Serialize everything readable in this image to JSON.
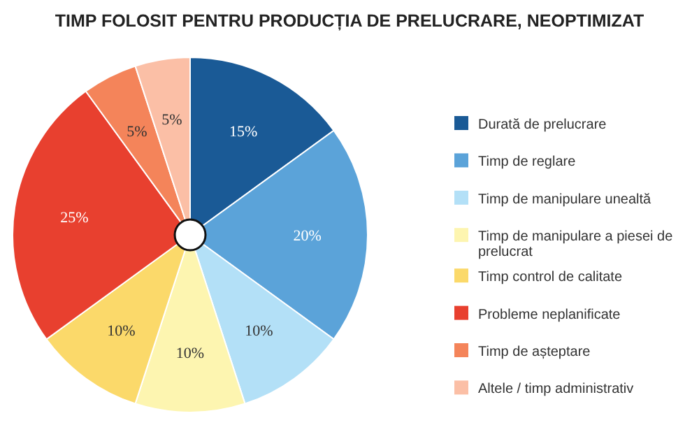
{
  "chart_data": {
    "type": "pie",
    "title": "TIMP FOLOSIT PENTRU PRODUCȚIA DE PRELUCRARE, NEOPTIMIZAT",
    "categories": [
      "Durată de prelucrare",
      "Timp de reglare",
      "Timp de manipulare unealtă",
      "Timp de manipulare a piesei de prelucrat",
      "Timp control de calitate",
      "Probleme neplanificate",
      "Timp de așteptare",
      "Altele / timp administrativ"
    ],
    "values": [
      15,
      20,
      10,
      10,
      10,
      25,
      5,
      5
    ],
    "colors": [
      "#1a5a96",
      "#5ba3d9",
      "#b3e0f7",
      "#fdf5b0",
      "#fbd96a",
      "#e8402f",
      "#f4845a",
      "#fbbfa6"
    ],
    "value_labels": [
      "15%",
      "20%",
      "10%",
      "10%",
      "10%",
      "25%",
      "5%",
      "5%"
    ],
    "legend": "right"
  }
}
